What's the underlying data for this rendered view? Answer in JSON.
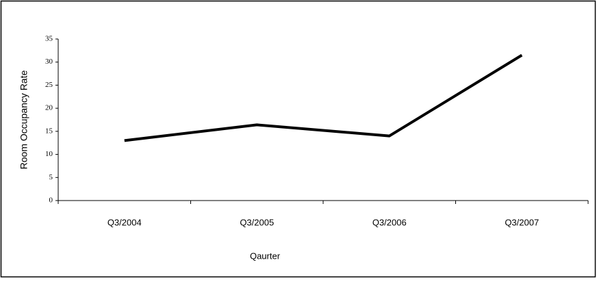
{
  "chart_data": {
    "type": "line",
    "x_label": "Qaurter",
    "y_label": "Room Occupancy Rate",
    "categories": [
      "Q3/2004",
      "Q3/2005",
      "Q3/2006",
      "Q3/2007"
    ],
    "values": [
      13,
      16.4,
      14,
      31.5
    ],
    "color": "#000000",
    "ylim": [
      0,
      35
    ],
    "yticks": [
      0,
      5,
      10,
      15,
      20,
      25,
      30,
      35
    ]
  }
}
